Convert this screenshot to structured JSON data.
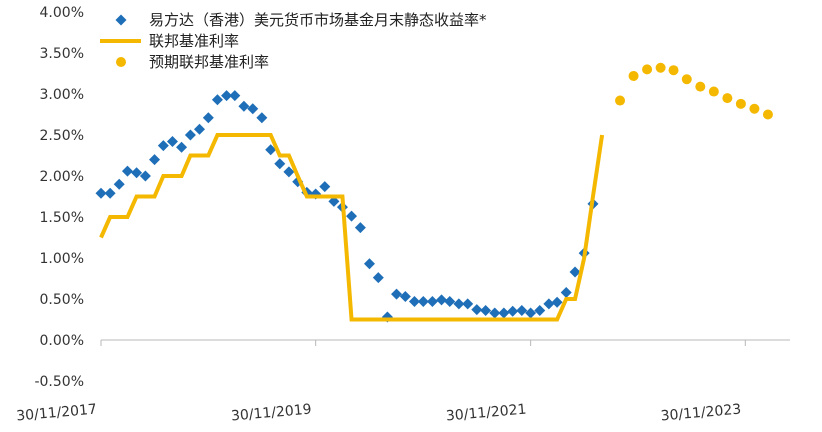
{
  "chart_data": {
    "type": "line",
    "ylim": [
      -0.5,
      4.0
    ],
    "xlim": [
      "2017-11-30",
      "2024-04-30"
    ],
    "y_ticks": [
      4.0,
      3.5,
      3.0,
      2.5,
      2.0,
      1.5,
      1.0,
      0.5,
      0.0,
      -0.5
    ],
    "y_tick_labels": [
      "4.00%",
      "3.50%",
      "3.00%",
      "2.50%",
      "2.00%",
      "1.50%",
      "1.00%",
      "0.50%",
      "0.00%",
      "-0.50%"
    ],
    "x_ticks": [
      "2017-11-30",
      "2019-11-30",
      "2021-11-30",
      "2023-11-30"
    ],
    "x_tick_labels": [
      "30/11/2017",
      "30/11/2019",
      "30/11/2021",
      "30/11/2023"
    ],
    "legend_position": "top-left",
    "grid": false,
    "series": [
      {
        "name": "易方达（香港）美元货币市场基金月末静态收益率*",
        "style": "diamond",
        "color": "#1f6fb8",
        "points": [
          [
            "2017-11-30",
            1.79
          ],
          [
            "2017-12-31",
            1.79
          ],
          [
            "2018-01-31",
            1.9
          ],
          [
            "2018-02-28",
            2.06
          ],
          [
            "2018-03-31",
            2.04
          ],
          [
            "2018-04-30",
            2.0
          ],
          [
            "2018-05-31",
            2.2
          ],
          [
            "2018-06-30",
            2.37
          ],
          [
            "2018-07-31",
            2.42
          ],
          [
            "2018-08-31",
            2.35
          ],
          [
            "2018-09-30",
            2.5
          ],
          [
            "2018-10-31",
            2.57
          ],
          [
            "2018-11-30",
            2.71
          ],
          [
            "2018-12-31",
            2.93
          ],
          [
            "2019-01-31",
            2.98
          ],
          [
            "2019-02-28",
            2.98
          ],
          [
            "2019-03-31",
            2.85
          ],
          [
            "2019-04-30",
            2.82
          ],
          [
            "2019-05-31",
            2.71
          ],
          [
            "2019-06-30",
            2.32
          ],
          [
            "2019-07-31",
            2.15
          ],
          [
            "2019-08-31",
            2.05
          ],
          [
            "2019-09-30",
            1.93
          ],
          [
            "2019-10-31",
            1.8
          ],
          [
            "2019-11-30",
            1.78
          ],
          [
            "2019-12-31",
            1.87
          ],
          [
            "2020-01-31",
            1.69
          ],
          [
            "2020-02-29",
            1.62
          ],
          [
            "2020-03-31",
            1.51
          ],
          [
            "2020-04-30",
            1.37
          ],
          [
            "2020-05-31",
            0.93
          ],
          [
            "2020-06-30",
            0.76
          ],
          [
            "2020-07-31",
            0.28
          ],
          [
            "2020-08-31",
            0.56
          ],
          [
            "2020-09-30",
            0.53
          ],
          [
            "2020-10-31",
            0.47
          ],
          [
            "2020-11-30",
            0.47
          ],
          [
            "2020-12-31",
            0.47
          ],
          [
            "2021-01-31",
            0.49
          ],
          [
            "2021-02-28",
            0.47
          ],
          [
            "2021-03-31",
            0.44
          ],
          [
            "2021-04-30",
            0.44
          ],
          [
            "2021-05-31",
            0.37
          ],
          [
            "2021-06-30",
            0.36
          ],
          [
            "2021-07-31",
            0.33
          ],
          [
            "2021-08-31",
            0.33
          ],
          [
            "2021-09-30",
            0.35
          ],
          [
            "2021-10-31",
            0.36
          ],
          [
            "2021-11-30",
            0.33
          ],
          [
            "2021-12-31",
            0.36
          ],
          [
            "2022-01-31",
            0.44
          ],
          [
            "2022-02-28",
            0.46
          ],
          [
            "2022-03-31",
            0.58
          ],
          [
            "2022-04-30",
            0.83
          ],
          [
            "2022-05-31",
            1.06
          ],
          [
            "2022-06-30",
            1.66
          ]
        ]
      },
      {
        "name": "联邦基准利率",
        "style": "line",
        "color": "#f5b800",
        "points": [
          [
            "2017-11-30",
            1.25
          ],
          [
            "2017-12-31",
            1.5
          ],
          [
            "2018-02-28",
            1.5
          ],
          [
            "2018-03-31",
            1.75
          ],
          [
            "2018-05-31",
            1.75
          ],
          [
            "2018-06-30",
            2.0
          ],
          [
            "2018-08-31",
            2.0
          ],
          [
            "2018-09-30",
            2.25
          ],
          [
            "2018-11-30",
            2.25
          ],
          [
            "2018-12-31",
            2.5
          ],
          [
            "2019-06-30",
            2.5
          ],
          [
            "2019-07-31",
            2.25
          ],
          [
            "2019-08-31",
            2.25
          ],
          [
            "2019-09-30",
            2.0
          ],
          [
            "2019-10-31",
            1.75
          ],
          [
            "2020-02-29",
            1.75
          ],
          [
            "2020-03-31",
            0.25
          ],
          [
            "2022-02-28",
            0.25
          ],
          [
            "2022-03-31",
            0.5
          ],
          [
            "2022-04-30",
            0.5
          ],
          [
            "2022-05-31",
            1.0
          ],
          [
            "2022-06-30",
            1.75
          ],
          [
            "2022-07-31",
            2.5
          ]
        ]
      },
      {
        "name": "预期联邦基准利率",
        "style": "dot",
        "color": "#f5b800",
        "points": [
          [
            "2022-09-30",
            2.92
          ],
          [
            "2022-11-15",
            3.22
          ],
          [
            "2022-12-31",
            3.3
          ],
          [
            "2023-02-15",
            3.32
          ],
          [
            "2023-03-31",
            3.29
          ],
          [
            "2023-05-15",
            3.18
          ],
          [
            "2023-06-30",
            3.09
          ],
          [
            "2023-08-15",
            3.03
          ],
          [
            "2023-09-30",
            2.95
          ],
          [
            "2023-11-15",
            2.88
          ],
          [
            "2023-12-31",
            2.82
          ],
          [
            "2024-02-15",
            2.75
          ]
        ]
      }
    ]
  }
}
